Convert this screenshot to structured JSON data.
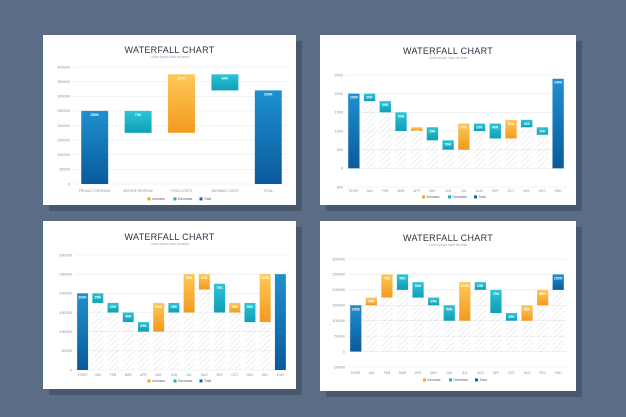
{
  "charts": [
    {
      "title": "WATERFALL CHART",
      "subtitle": "Lorem ipsum dolor sit amet",
      "chart_data": {
        "type": "bar",
        "subtype": "waterfall",
        "categories": [
          "PRODUCT REVENUE",
          "SERVICE REVENUE",
          "FIXED COSTS",
          "VARIABLE COSTS",
          "TOTAL"
        ],
        "bars": [
          {
            "base": 0,
            "top": 250000,
            "kind": "total",
            "label": "250K"
          },
          {
            "base": 175000,
            "top": 250000,
            "kind": "decrease",
            "label": "75K"
          },
          {
            "base": 175000,
            "top": 375000,
            "kind": "increase",
            "label": "200K"
          },
          {
            "base": 320000,
            "top": 375000,
            "kind": "decrease",
            "label": "60K"
          },
          {
            "base": 0,
            "top": 320000,
            "kind": "total",
            "label": "320K"
          }
        ],
        "yticks": [
          "0",
          "50000",
          "100000",
          "150000",
          "200000",
          "250000",
          "300000",
          "350000",
          "400000"
        ],
        "ylim": [
          0,
          400000
        ],
        "grid": true,
        "legend": [
          "Increase",
          "Decrease",
          "Total"
        ],
        "legend_position": "bottom-center",
        "hatch": false
      }
    },
    {
      "title": "WATERFALL CHART",
      "subtitle": "Lorem ipsum dolor sit amet",
      "chart_data": {
        "type": "bar",
        "subtype": "waterfall",
        "categories": [
          "START",
          "JAN",
          "FEB",
          "MAR",
          "APR",
          "MAY",
          "JUN",
          "JUL",
          "AUG",
          "SEP",
          "OCT",
          "NOV",
          "DEC",
          "END"
        ],
        "bars": [
          {
            "base": 0,
            "top": 2000,
            "kind": "total",
            "label": "2000"
          },
          {
            "base": 1800,
            "top": 2000,
            "kind": "decrease",
            "label": "20K"
          },
          {
            "base": 1500,
            "top": 1800,
            "kind": "decrease",
            "label": "30K"
          },
          {
            "base": 1000,
            "top": 1500,
            "kind": "decrease",
            "label": "50K"
          },
          {
            "base": 1000,
            "top": 1100,
            "kind": "increase",
            "label": "10K"
          },
          {
            "base": 750,
            "top": 1100,
            "kind": "decrease",
            "label": "35K"
          },
          {
            "base": 500,
            "top": 750,
            "kind": "decrease",
            "label": "50K"
          },
          {
            "base": 500,
            "top": 1200,
            "kind": "increase",
            "label": "70K"
          },
          {
            "base": 1000,
            "top": 1200,
            "kind": "decrease",
            "label": "20K"
          },
          {
            "base": 800,
            "top": 1200,
            "kind": "decrease",
            "label": "40K"
          },
          {
            "base": 800,
            "top": 1300,
            "kind": "increase",
            "label": "50K"
          },
          {
            "base": 1100,
            "top": 1300,
            "kind": "decrease",
            "label": "400"
          },
          {
            "base": 900,
            "top": 1100,
            "kind": "decrease",
            "label": "20K"
          },
          {
            "base": 0,
            "top": 2400,
            "kind": "total",
            "label": "2400"
          }
        ],
        "yticks": [
          "-500",
          "0",
          "500",
          "1000",
          "1500",
          "2000",
          "2500"
        ],
        "ylim": [
          -500,
          2500
        ],
        "grid": true,
        "legend": [
          "Increase",
          "Decrease",
          "Total"
        ],
        "legend_position": "bottom-center",
        "hatch": true
      }
    },
    {
      "title": "WATERFALL CHART",
      "subtitle": "Lorem ipsum dolor sit amet",
      "chart_data": {
        "type": "bar",
        "subtype": "waterfall",
        "categories": [
          "START",
          "JAN",
          "FEB",
          "MAR",
          "APR",
          "MAY",
          "JUN",
          "JUL",
          "AUG",
          "SEP",
          "OCT",
          "NOV",
          "DEC",
          "END"
        ],
        "bars": [
          {
            "base": 0,
            "top": 200000,
            "kind": "total",
            "label": "200K"
          },
          {
            "base": 175000,
            "top": 200000,
            "kind": "decrease",
            "label": "25K"
          },
          {
            "base": 150000,
            "top": 175000,
            "kind": "decrease",
            "label": "30K"
          },
          {
            "base": 125000,
            "top": 150000,
            "kind": "decrease",
            "label": "40K"
          },
          {
            "base": 100000,
            "top": 125000,
            "kind": "decrease",
            "label": "25K"
          },
          {
            "base": 100000,
            "top": 175000,
            "kind": "increase",
            "label": "50K"
          },
          {
            "base": 150000,
            "top": 175000,
            "kind": "decrease",
            "label": "25K"
          },
          {
            "base": 150000,
            "top": 250000,
            "kind": "increase",
            "label": "50K"
          },
          {
            "base": 210000,
            "top": 250000,
            "kind": "increase",
            "label": "20K"
          },
          {
            "base": 150000,
            "top": 225000,
            "kind": "decrease",
            "label": "75K"
          },
          {
            "base": 150000,
            "top": 175000,
            "kind": "increase",
            "label": "25K"
          },
          {
            "base": 125000,
            "top": 175000,
            "kind": "decrease",
            "label": "50K"
          },
          {
            "base": 125000,
            "top": 250000,
            "kind": "increase",
            "label": "150K"
          },
          {
            "base": 0,
            "top": 250000,
            "kind": "total",
            "label": ""
          }
        ],
        "yticks": [
          "0",
          "50000",
          "100000",
          "150000",
          "200000",
          "250000",
          "300000"
        ],
        "ylim": [
          0,
          300000
        ],
        "grid": true,
        "legend": [
          "Increase",
          "Decrease",
          "Total"
        ],
        "legend_position": "bottom-center",
        "hatch": true
      }
    },
    {
      "title": "WATERFALL CHART",
      "subtitle": "Lorem ipsum dolor sit amet",
      "chart_data": {
        "type": "bar",
        "subtype": "waterfall",
        "categories": [
          "START",
          "JAN",
          "FEB",
          "MAR",
          "APR",
          "MAY",
          "JUN",
          "JUL",
          "AUG",
          "SEP",
          "OCT",
          "NOV",
          "DEC",
          "END"
        ],
        "bars": [
          {
            "base": 0,
            "top": 150000,
            "kind": "total",
            "label": "150K"
          },
          {
            "base": 150000,
            "top": 175000,
            "kind": "increase",
            "label": "25K"
          },
          {
            "base": 175000,
            "top": 250000,
            "kind": "increase",
            "label": "75K"
          },
          {
            "base": 200000,
            "top": 250000,
            "kind": "decrease",
            "label": "50K"
          },
          {
            "base": 175000,
            "top": 225000,
            "kind": "decrease",
            "label": "50K"
          },
          {
            "base": 150000,
            "top": 175000,
            "kind": "decrease",
            "label": "25K"
          },
          {
            "base": 100000,
            "top": 150000,
            "kind": "decrease",
            "label": "50K"
          },
          {
            "base": 100000,
            "top": 225000,
            "kind": "increase",
            "label": "125K"
          },
          {
            "base": 200000,
            "top": 225000,
            "kind": "decrease",
            "label": "25K"
          },
          {
            "base": 125000,
            "top": 200000,
            "kind": "decrease",
            "label": "75K"
          },
          {
            "base": 100000,
            "top": 125000,
            "kind": "decrease",
            "label": "25K"
          },
          {
            "base": 100000,
            "top": 150000,
            "kind": "increase",
            "label": "50K"
          },
          {
            "base": 150000,
            "top": 200000,
            "kind": "increase",
            "label": "50K"
          },
          {
            "base": 200000,
            "top": 250000,
            "kind": "total",
            "label": "250K"
          }
        ],
        "yticks": [
          "-50000",
          "0",
          "50000",
          "100000",
          "150000",
          "200000",
          "250000",
          "300000"
        ],
        "ylim": [
          -50000,
          300000
        ],
        "grid": true,
        "legend": [
          "Increase",
          "Decrease",
          "Total"
        ],
        "legend_position": "bottom-center",
        "hatch": true
      }
    }
  ],
  "colors": {
    "increase": "#f5a623",
    "decrease": "#17b0c4",
    "total": "#0b63a8",
    "grid": "#e3e7eb",
    "axis_text": "#8a939c",
    "hatch": "#d5dae0"
  }
}
